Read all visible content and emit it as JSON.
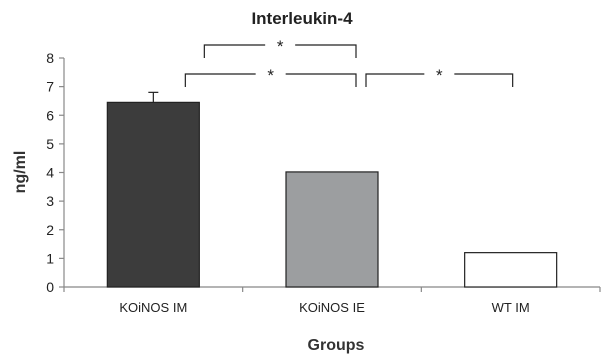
{
  "chart_data": {
    "type": "bar",
    "title": "Interleukin-4",
    "xlabel": "Groups",
    "ylabel": "ng/ml",
    "categories": [
      "KOiNOS IM",
      "KOiNOS IE",
      "WT IM"
    ],
    "values": [
      6.45,
      4.02,
      1.2
    ],
    "errors": [
      0.35,
      0.02,
      0.02
    ],
    "ylim": [
      0,
      8
    ],
    "yticks": [
      "0",
      "1",
      "2",
      "3",
      "4",
      "5",
      "6",
      "7",
      "8"
    ],
    "bar_colors": [
      "#3c3c3c",
      "#9c9ea0",
      "#ffffff"
    ],
    "grid": false,
    "legend": "none",
    "significance": [
      {
        "from": 0,
        "to": 1,
        "label": "*",
        "level": 2
      },
      {
        "from": 0,
        "to": 1,
        "label": "*",
        "level": 1
      },
      {
        "from": 1,
        "to": 2,
        "label": "*",
        "level": 1
      }
    ]
  }
}
